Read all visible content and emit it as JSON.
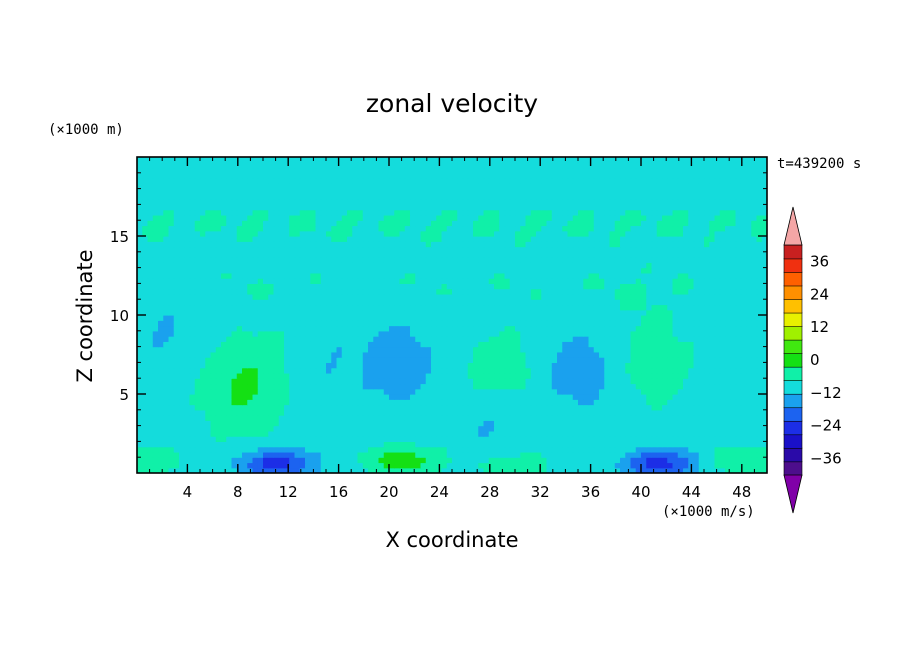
{
  "chart_data": {
    "type": "heatmap",
    "title": "zonal velocity",
    "xlabel": "X coordinate",
    "ylabel": "Z coordinate",
    "x_unit_label": "(×1000 m/s)",
    "y_unit_label": "(×1000 m)",
    "time_label": "t=439200 s",
    "xlim": [
      0,
      50
    ],
    "ylim": [
      0,
      20
    ],
    "x_ticks": [
      4,
      8,
      12,
      16,
      20,
      24,
      28,
      32,
      36,
      40,
      44,
      48
    ],
    "x_tick_labels": [
      "4",
      "8",
      "12",
      "16",
      "20",
      "24",
      "28",
      "32",
      "36",
      "40",
      "44",
      "48"
    ],
    "y_ticks": [
      5,
      10,
      15
    ],
    "y_tick_labels": [
      "5",
      "10",
      "15"
    ],
    "colorbar": {
      "min": -42,
      "max": 42,
      "step": 6,
      "extend": "both",
      "tick_values": [
        36,
        24,
        12,
        0,
        -12,
        -24,
        -36
      ],
      "tick_labels": [
        "36",
        "24",
        "12",
        "0",
        "−12",
        "−24",
        "−36"
      ],
      "colors": [
        "#4d0e8c",
        "#2a0aa8",
        "#1a10c8",
        "#1c2ee6",
        "#1c63f0",
        "#1aa1ee",
        "#14dcdc",
        "#10f0a8",
        "#14e014",
        "#40e810",
        "#a0f000",
        "#e8f000",
        "#ffc000",
        "#ff9000",
        "#ff6000",
        "#f03010",
        "#c82020"
      ],
      "over_color": "#f4a6a6",
      "under_color": "#8000a8"
    },
    "features": [
      {
        "x": 11,
        "z": 0.6,
        "value": -19,
        "label": "near-ground negative core"
      },
      {
        "x": 41.5,
        "z": 0.6,
        "value": -19,
        "label": "near-ground negative core"
      },
      {
        "x": 21,
        "z": 0.8,
        "value": 12,
        "label": "near-ground positive core"
      },
      {
        "x": 30,
        "z": 0.5,
        "value": 8,
        "label": "near-ground positive"
      },
      {
        "x": 48,
        "z": 0.9,
        "value": 8,
        "label": "near-ground positive"
      },
      {
        "x": 0.5,
        "z": 0.8,
        "value": 8,
        "label": "near-ground positive"
      },
      {
        "x": 8,
        "z": 5.5,
        "value": 7,
        "label": "positive blob"
      },
      {
        "x": 29,
        "z": 6.5,
        "value": 6,
        "label": "positive blob"
      },
      {
        "x": 42,
        "z": 6.5,
        "value": 4,
        "label": "positive blob"
      },
      {
        "x": 20.5,
        "z": 7,
        "value": -8,
        "label": "negative column"
      },
      {
        "x": 35,
        "z": 6.5,
        "value": -7,
        "label": "negative column"
      },
      {
        "x": 28.5,
        "z": 3,
        "value": -5,
        "label": "negative"
      },
      {
        "x": 2,
        "z": 9,
        "value": -4,
        "label": "negative"
      }
    ]
  }
}
